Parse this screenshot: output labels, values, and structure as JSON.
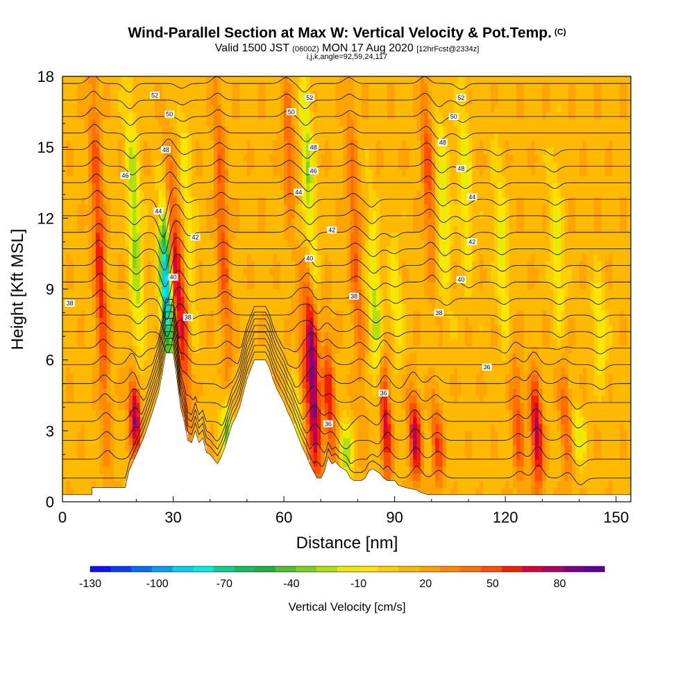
{
  "header": {
    "title": "Wind-Parallel Section at Max W: Vertical Velocity & Pot.Temp.",
    "title_mark": "(C)",
    "valid_a": "Valid 1500 JST",
    "valid_utc": "(0600Z)",
    "valid_b": "MON 17 Aug 2020",
    "forecast": "[12hrFcst@2334z]",
    "indices": "i,j,k,angle=92,59,24,117"
  },
  "chart_data": {
    "type": "heatmap",
    "xlabel": "Distance [nm]",
    "ylabel": "Height [Kft MSL]",
    "xlim": [
      0,
      154
    ],
    "ylim": [
      0,
      18
    ],
    "x_ticks": [
      0,
      30,
      60,
      90,
      120,
      150
    ],
    "y_ticks": [
      0,
      3,
      6,
      9,
      12,
      15,
      18
    ],
    "grid": false,
    "colorbar": {
      "title": "Vertical Velocity [cm/s]",
      "tick_labels": [
        "-130",
        "-100",
        "-70",
        "-40",
        "-10",
        "20",
        "50",
        "80"
      ],
      "tick_values": [
        -130,
        -100,
        -70,
        -40,
        -10,
        20,
        50,
        80
      ],
      "range": [
        -130,
        100
      ],
      "colors": [
        "#1010f0",
        "#0040f0",
        "#0070f0",
        "#00a0f0",
        "#00d0f0",
        "#00f0e0",
        "#10d090",
        "#10c060",
        "#20b040",
        "#50c030",
        "#80d020",
        "#b0e010",
        "#e8ec00",
        "#ffe600",
        "#ffd000",
        "#ffba00",
        "#ffa400",
        "#ff8a00",
        "#ff7000",
        "#ff5000",
        "#f02000",
        "#d8003a",
        "#b00060",
        "#7a0080",
        "#5a009a"
      ]
    },
    "terrain_kft": [
      [
        0,
        0.3
      ],
      [
        8,
        0.3
      ],
      [
        8,
        0.6
      ],
      [
        17,
        0.6
      ],
      [
        18,
        1.3
      ],
      [
        20,
        2.0
      ],
      [
        22,
        2.7
      ],
      [
        24,
        3.6
      ],
      [
        26,
        4.6
      ],
      [
        27,
        5.4
      ],
      [
        28,
        6.3
      ],
      [
        30,
        6.3
      ],
      [
        31,
        5.2
      ],
      [
        32,
        4.0
      ],
      [
        33,
        3.4
      ],
      [
        34,
        2.6
      ],
      [
        35,
        2.5
      ],
      [
        36,
        3.0
      ],
      [
        37,
        2.5
      ],
      [
        38,
        2.7
      ],
      [
        39,
        2.1
      ],
      [
        40,
        2.0
      ],
      [
        41,
        1.8
      ],
      [
        42,
        1.6
      ],
      [
        43,
        1.9
      ],
      [
        44,
        2.3
      ],
      [
        45,
        2.8
      ],
      [
        46,
        3.3
      ],
      [
        47,
        3.6
      ],
      [
        48,
        4.0
      ],
      [
        49,
        4.6
      ],
      [
        50,
        5.2
      ],
      [
        51,
        5.6
      ],
      [
        52,
        6.0
      ],
      [
        55,
        6.0
      ],
      [
        56,
        5.7
      ],
      [
        57,
        5.2
      ],
      [
        58,
        4.8
      ],
      [
        59,
        4.5
      ],
      [
        60,
        4.2
      ],
      [
        61,
        3.8
      ],
      [
        62,
        3.5
      ],
      [
        63,
        3.1
      ],
      [
        64,
        2.7
      ],
      [
        65,
        2.3
      ],
      [
        66,
        2.0
      ],
      [
        67,
        1.6
      ],
      [
        68,
        1.3
      ],
      [
        69,
        1.0
      ],
      [
        70,
        1.0
      ],
      [
        71,
        1.3
      ],
      [
        72,
        1.9
      ],
      [
        73,
        1.6
      ],
      [
        74,
        1.7
      ],
      [
        75,
        1.5
      ],
      [
        76,
        1.4
      ],
      [
        77,
        1.3
      ],
      [
        78,
        1.0
      ],
      [
        79,
        0.9
      ],
      [
        81,
        0.9
      ],
      [
        82,
        1.0
      ],
      [
        83,
        1.3
      ],
      [
        84,
        1.4
      ],
      [
        85,
        1.3
      ],
      [
        86,
        1.2
      ],
      [
        87,
        1.0
      ],
      [
        88,
        0.9
      ],
      [
        90,
        0.9
      ],
      [
        91,
        0.7
      ],
      [
        93,
        0.6
      ],
      [
        96,
        0.5
      ],
      [
        97,
        0.4
      ],
      [
        99,
        0.3
      ],
      [
        154,
        0.3
      ]
    ],
    "updraft_cores": [
      {
        "x": 12,
        "h0": 2.5,
        "h1": 18,
        "w": 45
      },
      {
        "x": 20,
        "h0": 2.3,
        "h1": 5,
        "w": 70
      },
      {
        "x": 31,
        "h0": 6.0,
        "h1": 14,
        "w": 55
      },
      {
        "x": 34,
        "h0": 2.6,
        "h1": 12,
        "w": 40
      },
      {
        "x": 45,
        "h0": 5.0,
        "h1": 18,
        "w": 35
      },
      {
        "x": 66,
        "h0": 1.6,
        "h1": 8,
        "w": 45
      },
      {
        "x": 69,
        "h0": 1.0,
        "h1": 10,
        "w": 80
      },
      {
        "x": 73,
        "h0": 1.5,
        "h1": 7,
        "w": 45
      },
      {
        "x": 81,
        "h0": 4.0,
        "h1": 18,
        "w": 30
      },
      {
        "x": 88,
        "h0": 1.0,
        "h1": 6,
        "w": 60
      },
      {
        "x": 96,
        "h0": 1.0,
        "h1": 4.5,
        "w": 60
      },
      {
        "x": 102,
        "h0": 0.8,
        "h1": 4,
        "w": 40
      },
      {
        "x": 129,
        "h0": 0.8,
        "h1": 5,
        "w": 65
      },
      {
        "x": 124,
        "h0": 0.8,
        "h1": 6,
        "w": 35
      },
      {
        "x": 137,
        "h0": 0.8,
        "h1": 6,
        "w": 30
      },
      {
        "x": 100,
        "h0": 10,
        "h1": 18,
        "w": 35
      },
      {
        "x": 62,
        "h0": 12,
        "h1": 18,
        "w": 30
      }
    ],
    "downdraft_cores": [
      {
        "x": 29,
        "h0": 6.2,
        "h1": 12,
        "w": -125
      },
      {
        "x": 21,
        "h0": 6.0,
        "h1": 17,
        "w": -45
      },
      {
        "x": 35,
        "h0": 7,
        "h1": 17,
        "w": -25
      },
      {
        "x": 45,
        "h0": 2.0,
        "h1": 4,
        "w": -50
      },
      {
        "x": 65,
        "h0": 2.0,
        "h1": 6,
        "w": -45
      },
      {
        "x": 68,
        "h0": 8,
        "h1": 18,
        "w": -45
      },
      {
        "x": 77,
        "h0": 1.3,
        "h1": 3,
        "w": -45
      },
      {
        "x": 86,
        "h0": 3.5,
        "h1": 12,
        "w": -40
      },
      {
        "x": 91,
        "h0": 6,
        "h1": 11,
        "w": -25
      },
      {
        "x": 104,
        "h0": 9,
        "h1": 16,
        "w": -35
      },
      {
        "x": 110,
        "h0": 10,
        "h1": 17,
        "w": -30
      },
      {
        "x": 120,
        "h0": 7,
        "h1": 14,
        "w": -30
      },
      {
        "x": 135,
        "h0": 7,
        "h1": 14,
        "w": -30
      },
      {
        "x": 146,
        "h0": 5.5,
        "h1": 9,
        "w": -30
      },
      {
        "x": 140,
        "h0": 2,
        "h1": 3.5,
        "w": -35
      }
    ],
    "isentropes_kft": [
      1.0,
      1.8,
      2.6,
      3.4,
      4.2,
      5.0,
      5.8,
      6.5,
      7.2,
      7.9,
      8.6,
      9.3,
      10.0,
      10.7,
      11.4,
      12.1,
      12.8,
      13.5,
      14.2,
      14.9,
      15.6,
      16.3,
      17.0,
      17.7
    ],
    "contour_labels": [
      {
        "text": "52",
        "x": 25,
        "y": 17.2
      },
      {
        "text": "50",
        "x": 29,
        "y": 16.4
      },
      {
        "text": "48",
        "x": 28,
        "y": 14.9
      },
      {
        "text": "46",
        "x": 17,
        "y": 13.8
      },
      {
        "text": "44",
        "x": 26,
        "y": 12.3
      },
      {
        "text": "42",
        "x": 36,
        "y": 11.2
      },
      {
        "text": "40",
        "x": 30,
        "y": 9.5
      },
      {
        "text": "38",
        "x": 34,
        "y": 7.8
      },
      {
        "text": "38",
        "x": 2,
        "y": 8.4
      },
      {
        "text": "52",
        "x": 67,
        "y": 17.1
      },
      {
        "text": "50",
        "x": 62,
        "y": 16.5
      },
      {
        "text": "48",
        "x": 68,
        "y": 15.0
      },
      {
        "text": "46",
        "x": 68,
        "y": 14.0
      },
      {
        "text": "44",
        "x": 64,
        "y": 13.1
      },
      {
        "text": "42",
        "x": 73,
        "y": 11.5
      },
      {
        "text": "40",
        "x": 67,
        "y": 10.3
      },
      {
        "text": "38",
        "x": 79,
        "y": 8.7
      },
      {
        "text": "36",
        "x": 87,
        "y": 4.6
      },
      {
        "text": "36",
        "x": 72,
        "y": 3.3
      },
      {
        "text": "52",
        "x": 108,
        "y": 17.1
      },
      {
        "text": "50",
        "x": 106,
        "y": 16.3
      },
      {
        "text": "48",
        "x": 103,
        "y": 15.2
      },
      {
        "text": "48",
        "x": 108,
        "y": 14.1
      },
      {
        "text": "44",
        "x": 111,
        "y": 12.9
      },
      {
        "text": "42",
        "x": 111,
        "y": 11.0
      },
      {
        "text": "40",
        "x": 108,
        "y": 9.4
      },
      {
        "text": "38",
        "x": 102,
        "y": 8.0
      },
      {
        "text": "36",
        "x": 115,
        "y": 5.7
      }
    ]
  }
}
